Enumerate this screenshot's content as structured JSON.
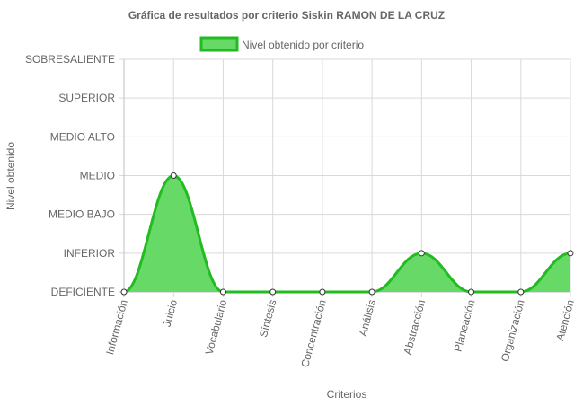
{
  "chart_data": {
    "type": "area",
    "title": "Gráfica de resultados por criterio Siskin RAMON DE LA CRUZ",
    "xlabel": "Criterios",
    "ylabel": "Nivel obtenido",
    "y_levels": [
      "DEFICIENTE",
      "INFERIOR",
      "MEDIO BAJO",
      "MEDIO",
      "MEDIO ALTO",
      "SUPERIOR",
      "SOBRESALIENTE"
    ],
    "ylim": [
      0,
      6
    ],
    "categories": [
      "Información",
      "Juicio",
      "Vocabulario",
      "Síntesis",
      "Concentración",
      "Análisis",
      "Abstracción",
      "Planeación",
      "Organización",
      "Atención"
    ],
    "series": [
      {
        "name": "Nivel obtenido por criterio",
        "values": [
          0,
          3,
          0,
          0,
          0,
          0,
          1,
          0,
          0,
          1
        ],
        "fill_color": "#66d966",
        "line_color": "#22bb22"
      }
    ],
    "grid": true,
    "legend": "top"
  }
}
